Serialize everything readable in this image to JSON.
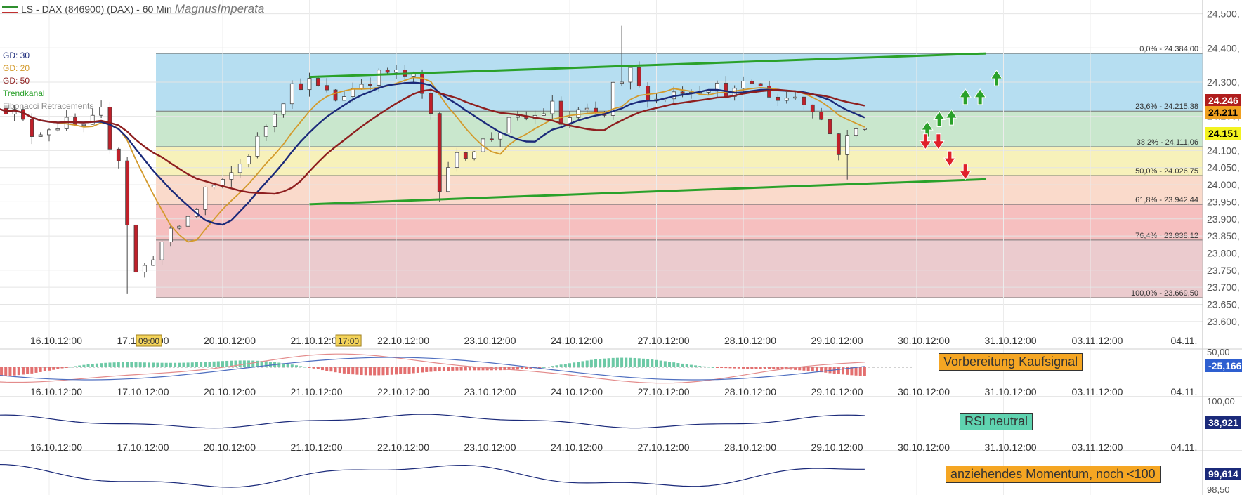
{
  "title": "LS - DAX (846900) (DAX) - 60 Min",
  "author": "MagnusImperata",
  "legend": [
    {
      "label": "GD: 30",
      "color": "#1b2a7a"
    },
    {
      "label": "GD: 20",
      "color": "#d39a2c"
    },
    {
      "label": "GD: 50",
      "color": "#8e1f1f"
    },
    {
      "label": "Trendkanal",
      "color": "#2aa12a"
    },
    {
      "label": "Fibonacci Retracements",
      "color": "#888888"
    }
  ],
  "colors": {
    "up": "#2aa12a",
    "down": "#c0202a",
    "gd30": "#1b2a7a",
    "gd20": "#d39a2c",
    "gd50": "#8e1f1f",
    "trend": "#2aa12a",
    "zone_blue": "#a9d8ef",
    "zone_green": "#bfe3c4",
    "zone_yellow": "#f6efae",
    "zone_salmon": "#f9d3c2",
    "zone_red": "#f4b4b4",
    "zone_rose": "#e8c2c6"
  },
  "chart_data": [
    {
      "type": "candlestick",
      "x_labels": [
        "16.10.12:00",
        "17.10.12:00",
        "20.10.12:00",
        "21.10.12:00",
        "22.10.12:00",
        "23.10.12:00",
        "24.10.12:00",
        "27.10.12:00",
        "28.10.12:00",
        "29.10.12:00",
        "30.10.12:00",
        "31.10.12:00",
        "03.11.12:00",
        "04.11."
      ],
      "time_markers": [
        "09:00",
        "17:00"
      ],
      "ylim": [
        23575,
        24530
      ],
      "y_ticks": [
        {
          "v": 24500,
          "label": "24.500,"
        },
        {
          "v": 24400,
          "label": "24.400,"
        },
        {
          "v": 24300,
          "label": "24.300,"
        },
        {
          "v": 24200,
          "label": "24.200,"
        },
        {
          "v": 24100,
          "label": "24.100,"
        },
        {
          "v": 24050,
          "label": "24.050,"
        },
        {
          "v": 24000,
          "label": "24.000,"
        },
        {
          "v": 23950,
          "label": "23.950,"
        },
        {
          "v": 23900,
          "label": "23.900,"
        },
        {
          "v": 23850,
          "label": "23.850,"
        },
        {
          "v": 23800,
          "label": "23.800,"
        },
        {
          "v": 23750,
          "label": "23.750,"
        },
        {
          "v": 23700,
          "label": "23.700,"
        },
        {
          "v": 23650,
          "label": "23.650,"
        },
        {
          "v": 23600,
          "label": "23.600,"
        }
      ],
      "fibonacci": [
        {
          "value": 24384.0,
          "label": "0,0% - 24.384,00"
        },
        {
          "value": 24215.38,
          "label": "23,6% - 24.215,38"
        },
        {
          "value": 24111.06,
          "label": "38,2% - 24.111,06"
        },
        {
          "value": 24026.75,
          "label": "50,0% - 24.026,75"
        },
        {
          "value": 23942.44,
          "label": "61,8% - 23.942,44"
        },
        {
          "value": 23838.12,
          "label": "76,4% - 23.838,12"
        },
        {
          "value": 23669.5,
          "label": "100,0% - 23.669,50"
        }
      ],
      "trend_channel": {
        "upper": [
          [
            3.0,
            24315
          ],
          [
            10.8,
            24384
          ]
        ],
        "lower": [
          [
            3.0,
            23943
          ],
          [
            10.8,
            24016
          ]
        ]
      },
      "price_tags": [
        {
          "label": "24.246",
          "value": 24246,
          "bg": "#b01e1e",
          "fg": "#ffffff"
        },
        {
          "label": "24.211",
          "value": 24211,
          "bg": "#f0a020",
          "fg": "#000000"
        },
        {
          "label": "24.151",
          "value": 24151,
          "bg": "#f3f320",
          "fg": "#000000"
        }
      ],
      "up_arrows": [
        [
          10.12,
          24160
        ],
        [
          10.26,
          24190
        ],
        [
          10.4,
          24195
        ],
        [
          10.56,
          24255
        ],
        [
          10.73,
          24255
        ],
        [
          10.92,
          24310
        ]
      ],
      "down_arrows": [
        [
          10.1,
          24128
        ],
        [
          10.25,
          24128
        ],
        [
          10.38,
          24078
        ],
        [
          10.56,
          24040
        ]
      ],
      "anchors": [
        [
          -0.6,
          24240
        ],
        [
          -0.4,
          24210
        ],
        [
          -0.2,
          24150
        ],
        [
          0.0,
          24170
        ],
        [
          0.2,
          24180
        ],
        [
          0.4,
          24160
        ],
        [
          0.6,
          24210
        ],
        [
          0.7,
          24120
        ],
        [
          0.8,
          24080
        ],
        [
          0.9,
          23890
        ],
        [
          1.0,
          23740
        ],
        [
          1.1,
          23760
        ],
        [
          1.3,
          23830
        ],
        [
          1.5,
          23880
        ],
        [
          1.7,
          23930
        ],
        [
          1.8,
          23990
        ],
        [
          2.0,
          24000
        ],
        [
          2.2,
          24060
        ],
        [
          2.4,
          24130
        ],
        [
          2.6,
          24220
        ],
        [
          2.8,
          24290
        ],
        [
          3.0,
          24300
        ],
        [
          3.3,
          24250
        ],
        [
          3.6,
          24300
        ],
        [
          3.9,
          24330
        ],
        [
          4.2,
          24310
        ],
        [
          4.4,
          24210
        ],
        [
          4.5,
          24000
        ],
        [
          4.6,
          24060
        ],
        [
          4.9,
          24110
        ],
        [
          5.1,
          24140
        ],
        [
          5.3,
          24180
        ],
        [
          5.6,
          24200
        ],
        [
          5.8,
          24230
        ],
        [
          5.9,
          24180
        ],
        [
          6.1,
          24210
        ],
        [
          6.4,
          24200
        ],
        [
          6.5,
          24290
        ],
        [
          6.6,
          24390
        ],
        [
          6.8,
          24280
        ],
        [
          7.0,
          24250
        ],
        [
          7.3,
          24280
        ],
        [
          7.6,
          24290
        ],
        [
          7.9,
          24270
        ],
        [
          8.1,
          24300
        ],
        [
          8.4,
          24250
        ],
        [
          8.6,
          24260
        ],
        [
          8.8,
          24230
        ],
        [
          9.0,
          24150
        ],
        [
          9.1,
          24100
        ],
        [
          9.25,
          24150
        ],
        [
          9.4,
          24180
        ]
      ]
    },
    {
      "type": "histogram",
      "name": "MACD",
      "label": "50,00",
      "value_tag": "-25,166",
      "annotation": "Vorbereitung Kaufsignal"
    },
    {
      "type": "line",
      "name": "RSI",
      "label": "100,00",
      "value_tag": "38,921",
      "annotation": "RSI neutral"
    },
    {
      "type": "line",
      "name": "Momentum",
      "label": "98,50",
      "value_tag": "99,614",
      "annotation": "anziehendes Momentum, noch <100"
    }
  ]
}
